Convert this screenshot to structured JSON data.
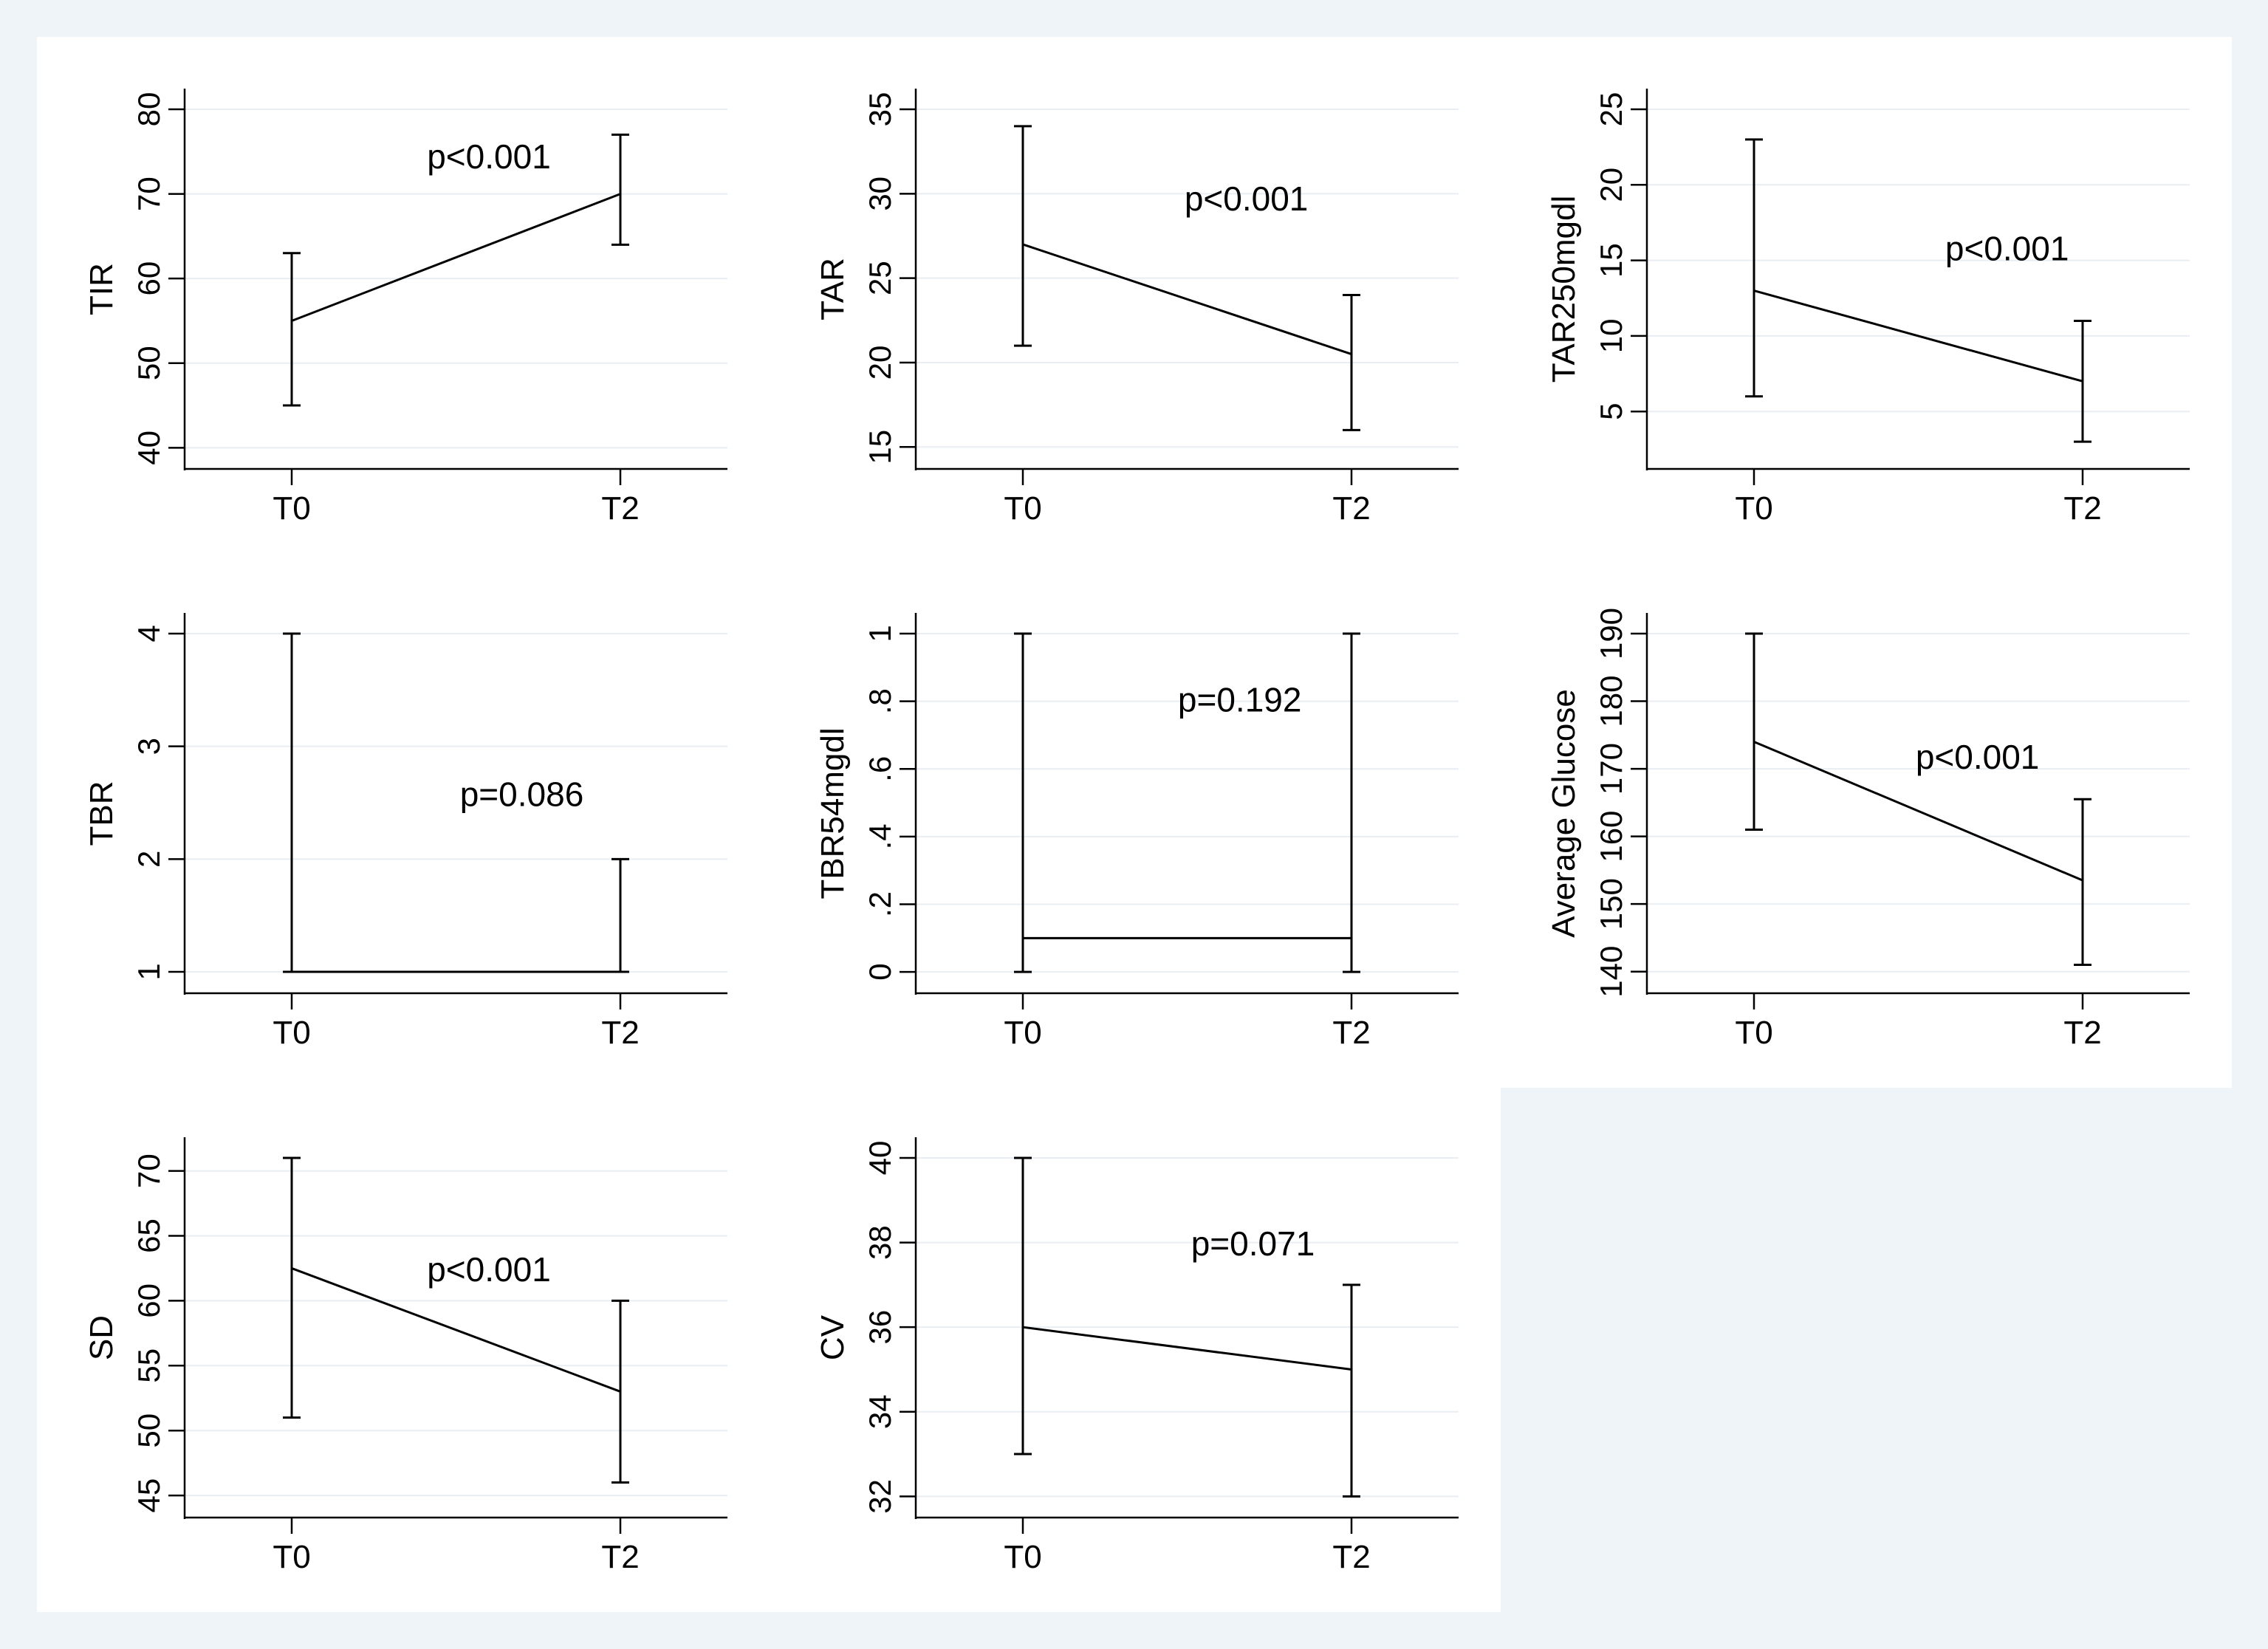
{
  "figure": {
    "background": "#eef4f8",
    "panel_background": "#ffffff",
    "gridline_color": "#e8eef3",
    "ink_color": "#000000"
  },
  "chart_data": [
    {
      "type": "line",
      "ylabel": "TIR",
      "categories": [
        "T0",
        "T2"
      ],
      "y": [
        55,
        70
      ],
      "ci_low": [
        45,
        64
      ],
      "ci_high": [
        63,
        77
      ],
      "yticks": [
        40,
        50,
        60,
        70,
        80
      ],
      "ytick_labels": [
        "40",
        "50",
        "60",
        "70",
        "80"
      ],
      "ylim": [
        37.5,
        80
      ],
      "annotation": "p<0.001",
      "annotation_pos": {
        "x": 0.6,
        "y": 73
      }
    },
    {
      "type": "line",
      "ylabel": "TAR",
      "categories": [
        "T0",
        "T2"
      ],
      "y": [
        27,
        20.5
      ],
      "ci_low": [
        21,
        16
      ],
      "ci_high": [
        34,
        24
      ],
      "yticks": [
        15,
        20,
        25,
        30,
        35
      ],
      "ytick_labels": [
        "15",
        "20",
        "25",
        "30",
        "35"
      ],
      "ylim": [
        13.7,
        35
      ],
      "annotation": "p<0.001",
      "annotation_pos": {
        "x": 0.68,
        "y": 29
      }
    },
    {
      "type": "line",
      "ylabel": "TAR250mgdl",
      "categories": [
        "T0",
        "T2"
      ],
      "y": [
        13,
        7
      ],
      "ci_low": [
        6,
        3
      ],
      "ci_high": [
        23,
        11
      ],
      "yticks": [
        5,
        10,
        15,
        20,
        25
      ],
      "ytick_labels": [
        "5",
        "10",
        "15",
        "20",
        "25"
      ],
      "ylim": [
        1.2,
        25
      ],
      "annotation": "p<0.001",
      "annotation_pos": {
        "x": 0.77,
        "y": 15
      }
    },
    {
      "type": "line",
      "ylabel": "TBR",
      "categories": [
        "T0",
        "T2"
      ],
      "y": [
        1,
        1
      ],
      "ci_low": [
        1,
        1
      ],
      "ci_high": [
        4,
        2
      ],
      "yticks": [
        1,
        2,
        3,
        4
      ],
      "ytick_labels": [
        "1",
        "2",
        "3",
        "4"
      ],
      "ylim": [
        0.81,
        4
      ],
      "annotation": "p=0.086",
      "annotation_pos": {
        "x": 0.7,
        "y": 2.47
      }
    },
    {
      "type": "line",
      "ylabel": "TBR54mgdl",
      "categories": [
        "T0",
        "T2"
      ],
      "y": [
        0.1,
        0.1
      ],
      "ci_low": [
        0,
        0
      ],
      "ci_high": [
        1,
        1
      ],
      "yticks": [
        0,
        0.2,
        0.4,
        0.6,
        0.8,
        1
      ],
      "ytick_labels": [
        "0",
        ".2",
        ".4",
        ".6",
        ".8",
        "1"
      ],
      "ylim": [
        -0.063,
        1
      ],
      "annotation": "p=0.192",
      "annotation_pos": {
        "x": 0.66,
        "y": 0.77
      }
    },
    {
      "type": "line",
      "ylabel": "Average Glucose",
      "categories": [
        "T0",
        "T2"
      ],
      "y": [
        174,
        153.5
      ],
      "ci_low": [
        161,
        141
      ],
      "ci_high": [
        190,
        165.5
      ],
      "yticks": [
        140,
        150,
        160,
        170,
        180,
        190
      ],
      "ytick_labels": [
        "140",
        "150",
        "160",
        "170",
        "180",
        "190"
      ],
      "ylim": [
        136.8,
        190
      ],
      "annotation": "p<0.001",
      "annotation_pos": {
        "x": 0.68,
        "y": 170
      }
    },
    {
      "type": "line",
      "ylabel": "SD",
      "categories": [
        "T0",
        "T2"
      ],
      "y": [
        62.5,
        53
      ],
      "ci_low": [
        51,
        46
      ],
      "ci_high": [
        71,
        60
      ],
      "yticks": [
        45,
        50,
        55,
        60,
        65,
        70
      ],
      "ytick_labels": [
        "45",
        "50",
        "55",
        "60",
        "65",
        "70"
      ],
      "ylim": [
        43.3,
        71
      ],
      "annotation": "p<0.001",
      "annotation_pos": {
        "x": 0.6,
        "y": 61.5
      }
    },
    {
      "type": "line",
      "ylabel": "CV",
      "categories": [
        "T0",
        "T2"
      ],
      "y": [
        36,
        35
      ],
      "ci_low": [
        33,
        32
      ],
      "ci_high": [
        40,
        37
      ],
      "yticks": [
        32,
        34,
        36,
        38,
        40
      ],
      "ytick_labels": [
        "32",
        "34",
        "36",
        "38",
        "40"
      ],
      "ylim": [
        31.5,
        40
      ],
      "annotation": "p=0.071",
      "annotation_pos": {
        "x": 0.7,
        "y": 37.7
      }
    }
  ]
}
